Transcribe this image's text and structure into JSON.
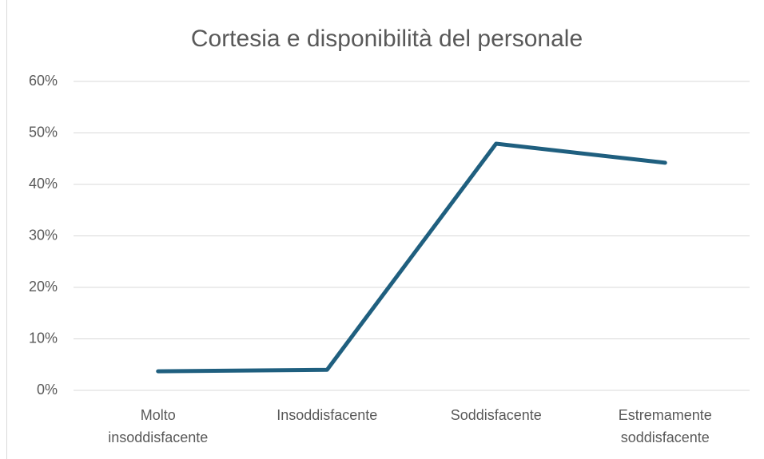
{
  "chart_data": {
    "type": "line",
    "title": "Cortesia e disponibilità del personale",
    "categories": [
      "Molto insoddisfacente",
      "Insoddisfacente",
      "Soddisfacente",
      "Estremamente soddisfacente"
    ],
    "series": [
      {
        "name": "Cortesia e disponibilità del personale",
        "color": "#1f5f7f",
        "values": [
          3.7,
          4.0,
          47.9,
          44.2
        ]
      }
    ],
    "ylim": [
      0,
      60
    ],
    "yticks": [
      {
        "value": 0,
        "label": "0%"
      },
      {
        "value": 10,
        "label": "10%"
      },
      {
        "value": 20,
        "label": "20%"
      },
      {
        "value": 30,
        "label": "30%"
      },
      {
        "value": 40,
        "label": "40%"
      },
      {
        "value": 50,
        "label": "50%"
      },
      {
        "value": 60,
        "label": "60%"
      }
    ],
    "grid": true
  }
}
